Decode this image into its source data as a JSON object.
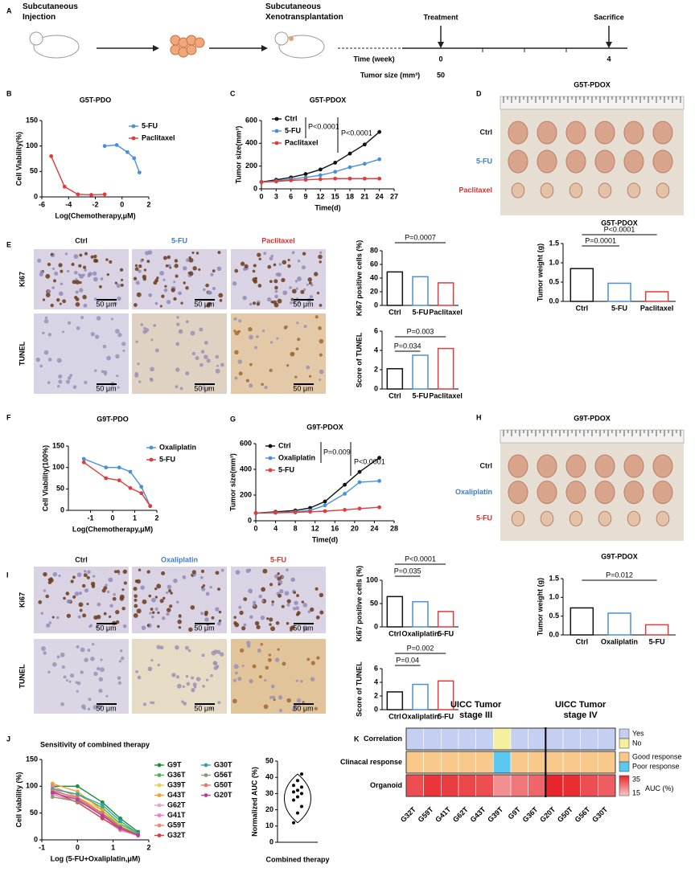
{
  "panel_labels": [
    "A",
    "B",
    "C",
    "D",
    "E",
    "F",
    "G",
    "H",
    "I",
    "J",
    "K"
  ],
  "schematic": {
    "steps": [
      "Subcutaneous Injection",
      "Subcutaneous Xenotransplantation"
    ],
    "events": [
      "Treatment",
      "Sacrifice"
    ],
    "time_label": "Time (week)",
    "time_values": [
      0,
      4
    ],
    "size_label": "Tumor size (mm³)",
    "size_value": 50
  },
  "photo_panels": [
    {
      "title": "G5T-PDOX",
      "rows": [
        {
          "label": "Ctrl",
          "color": "#111111"
        },
        {
          "label": "5-FU",
          "color": "#3d7cc9"
        },
        {
          "label": "Paclitaxel",
          "color": "#d83030"
        }
      ]
    },
    {
      "title": "G9T-PDOX",
      "rows": [
        {
          "label": "Ctrl",
          "color": "#111111"
        },
        {
          "label": "Oxaliplatin",
          "color": "#3d7cc9"
        },
        {
          "label": "5-FU",
          "color": "#d83030"
        }
      ]
    }
  ],
  "micrograph_panels": [
    {
      "columns": [
        {
          "label": "Ctrl",
          "color": "#111111"
        },
        {
          "label": "5-FU",
          "color": "#3d7cc9"
        },
        {
          "label": "Paclitaxel",
          "color": "#d83030"
        }
      ],
      "rows": [
        "Ki67",
        "TUNEL"
      ],
      "scale_bar": "50 μm"
    },
    {
      "columns": [
        {
          "label": "Ctrl",
          "color": "#111111"
        },
        {
          "label": "Oxaliplatin",
          "color": "#3d7cc9"
        },
        {
          "label": "5-FU",
          "color": "#d83030"
        }
      ],
      "rows": [
        "Ki67",
        "TUNEL"
      ],
      "scale_bar": "50 μm"
    }
  ],
  "chart_data": [
    {
      "type": "line",
      "title": "G5T-PDO",
      "x_label": "Log(Chemotherapy,μM)",
      "y_label": "Cell Viability(%)",
      "xlim": [
        -6,
        2
      ],
      "xticks": [
        -6,
        -4,
        -2,
        0,
        2
      ],
      "ylim": [
        0,
        150
      ],
      "yticks": [
        0,
        50,
        100,
        150
      ],
      "series": [
        {
          "name": "5-FU",
          "color": "#4a90d9",
          "x": [
            -1.3,
            -0.4,
            0.4,
            0.9,
            1.3
          ],
          "values": [
            100,
            102,
            88,
            76,
            48
          ]
        },
        {
          "name": "Paclitaxel",
          "color": "#e03c3c",
          "x": [
            -5.3,
            -4.3,
            -3.3,
            -2.3,
            -1.3
          ],
          "values": [
            80,
            20,
            5,
            4,
            5
          ]
        }
      ]
    },
    {
      "type": "line",
      "title": "G5T-PDOX",
      "x_label": "Time(d)",
      "y_label": "Tumor size(mm³)",
      "xlim": [
        0,
        27
      ],
      "xticks": [
        0,
        3,
        6,
        9,
        12,
        15,
        18,
        21,
        24,
        27
      ],
      "ylim": [
        0,
        600
      ],
      "yticks": [
        0,
        200,
        400,
        600
      ],
      "x": [
        0,
        3,
        6,
        9,
        12,
        15,
        18,
        21,
        24
      ],
      "series": [
        {
          "name": "Ctrl",
          "color": "#111111",
          "values": [
            60,
            80,
            100,
            130,
            170,
            230,
            310,
            390,
            500
          ]
        },
        {
          "name": "5-FU",
          "color": "#4a90d9",
          "values": [
            60,
            70,
            85,
            100,
            120,
            150,
            190,
            220,
            260
          ]
        },
        {
          "name": "Paclitaxel",
          "color": "#e03c3c",
          "values": [
            60,
            65,
            75,
            80,
            85,
            90,
            90,
            90,
            90
          ]
        }
      ],
      "annotations": [
        "P<0.0001",
        "P<0.0001"
      ]
    },
    {
      "type": "bar",
      "title": "G5T-PDOX",
      "y_label": "Tumor weight (g)",
      "ylim": [
        0,
        1.5
      ],
      "yticks": [
        {
          "value": 0,
          "label": "0.0"
        },
        0.5,
        {
          "value": 1,
          "label": "1.0"
        },
        1.5
      ],
      "categories": [
        "Ctrl",
        "5-FU",
        "Paclitaxel"
      ],
      "values": [
        0.85,
        0.47,
        0.25
      ],
      "colors": [
        "#111111",
        "#4a90d9",
        "#e03c3c"
      ],
      "annotations": [
        "P=0.0001",
        "P<0.0001"
      ]
    },
    {
      "type": "bar",
      "y_label": "Ki67 positive cells (%)",
      "ylim": [
        0,
        80
      ],
      "yticks": [
        0,
        20,
        40,
        60,
        80
      ],
      "categories": [
        "Ctrl",
        "5-FU",
        "Paclitaxel"
      ],
      "values": [
        49,
        42,
        33
      ],
      "colors": [
        "#111111",
        "#4a90d9",
        "#e03c3c"
      ],
      "annotations": [
        "P=0.0007"
      ]
    },
    {
      "type": "bar",
      "y_label": "Score of TUNEL",
      "ylim": [
        0,
        6
      ],
      "yticks": [
        0,
        2,
        4,
        6
      ],
      "categories": [
        "Ctrl",
        "5-FU",
        "Paclitaxel"
      ],
      "values": [
        2.1,
        3.5,
        4.2
      ],
      "colors": [
        "#111111",
        "#4a90d9",
        "#e03c3c"
      ],
      "annotations": [
        "P=0.034",
        "P=0.003"
      ]
    },
    {
      "type": "line",
      "title": "G9T-PDO",
      "x_label": "Log(Chemotherapy,μM)",
      "y_label": "Cell Viability(100%)",
      "xlim": [
        -2,
        2
      ],
      "xticks": [
        -1,
        0,
        1,
        2
      ],
      "ylim": [
        0,
        150
      ],
      "yticks": [
        0,
        50,
        100,
        150
      ],
      "series": [
        {
          "name": "Oxaliplatin",
          "color": "#4a90d9",
          "x": [
            -1.3,
            -0.3,
            0.3,
            0.8,
            1.3,
            1.7
          ],
          "values": [
            120,
            100,
            100,
            90,
            55,
            10
          ]
        },
        {
          "name": "5-FU",
          "color": "#e03c3c",
          "x": [
            -1.3,
            -0.3,
            0.3,
            0.8,
            1.3,
            1.7
          ],
          "values": [
            112,
            75,
            70,
            52,
            40,
            10
          ]
        }
      ]
    },
    {
      "type": "line",
      "title": "G9T-PDOX",
      "x_label": "Time(d)",
      "y_label": "Tumor size(mm³)",
      "xlim": [
        0,
        28
      ],
      "xticks": [
        0,
        4,
        8,
        12,
        16,
        20,
        24,
        28
      ],
      "ylim": [
        0,
        600
      ],
      "yticks": [
        0,
        200,
        400,
        600
      ],
      "x": [
        0,
        4,
        8,
        11,
        14,
        18,
        21,
        25
      ],
      "series": [
        {
          "name": "Ctrl",
          "color": "#111111",
          "values": [
            60,
            70,
            80,
            100,
            150,
            280,
            380,
            490
          ]
        },
        {
          "name": "Oxaliplatin",
          "color": "#4a90d9",
          "values": [
            60,
            65,
            70,
            80,
            120,
            210,
            300,
            310
          ]
        },
        {
          "name": "5-FU",
          "color": "#e03c3c",
          "values": [
            60,
            62,
            65,
            70,
            75,
            85,
            95,
            105
          ]
        }
      ],
      "annotations": [
        "P=0.009",
        "P<0.0001"
      ]
    },
    {
      "type": "bar",
      "title": "G9T-PDOX",
      "y_label": "Tumor weight (g)",
      "ylim": [
        0,
        1.5
      ],
      "yticks": [
        {
          "value": 0,
          "label": "0.0"
        },
        0.5,
        {
          "value": 1,
          "label": "1.0"
        },
        1.5
      ],
      "categories": [
        "Ctrl",
        "Oxaliplatin",
        "5-FU"
      ],
      "values": [
        0.72,
        0.58,
        0.27
      ],
      "colors": [
        "#111111",
        "#4a90d9",
        "#e03c3c"
      ],
      "annotations": [
        "P=0.012"
      ]
    },
    {
      "type": "bar",
      "y_label": "Ki67 positive cells (%)",
      "ylim": [
        0,
        100
      ],
      "yticks": [
        0,
        50,
        100
      ],
      "categories": [
        "Ctrl",
        "Oxaliplatin",
        "5-FU"
      ],
      "values": [
        65,
        54,
        33
      ],
      "colors": [
        "#111111",
        "#4a90d9",
        "#e03c3c"
      ],
      "annotations": [
        "P=0.035",
        "P<0.0001"
      ]
    },
    {
      "type": "bar",
      "y_label": "Score of TUNEL",
      "ylim": [
        0,
        6
      ],
      "yticks": [
        0,
        2,
        4,
        6
      ],
      "categories": [
        "Ctrl",
        "Oxaliplatin",
        "5-FU"
      ],
      "values": [
        2.6,
        3.7,
        4.2
      ],
      "colors": [
        "#111111",
        "#4a90d9",
        "#e03c3c"
      ],
      "annotations": [
        "P=0.04",
        "P=0.002"
      ]
    },
    {
      "type": "line",
      "title": "Sensitivity of combined therapy",
      "x_label": "Log (5-FU+Oxaliplatin,μM)",
      "y_label": "Cell viability (%)",
      "xlim": [
        -1,
        2
      ],
      "xticks": [
        -1,
        0,
        1,
        2
      ],
      "ylim": [
        0,
        150
      ],
      "yticks": [
        0,
        50,
        100,
        150
      ],
      "x": [
        -0.7,
        0,
        0.7,
        1.2,
        1.7
      ],
      "series": [
        {
          "name": "G9T",
          "color": "#1a8f3a",
          "values": [
            100,
            100,
            70,
            40,
            15
          ]
        },
        {
          "name": "G36T",
          "color": "#44b556",
          "values": [
            95,
            85,
            60,
            30,
            12
          ]
        },
        {
          "name": "G39T",
          "color": "#e5d04a",
          "values": [
            90,
            80,
            55,
            28,
            10
          ]
        },
        {
          "name": "G43T",
          "color": "#f0a030",
          "values": [
            105,
            90,
            55,
            25,
            10
          ]
        },
        {
          "name": "G62T",
          "color": "#e8a4c8",
          "values": [
            95,
            75,
            45,
            20,
            8
          ]
        },
        {
          "name": "G41T",
          "color": "#f07ad0",
          "values": [
            85,
            70,
            40,
            18,
            8
          ]
        },
        {
          "name": "G59T",
          "color": "#ef8a6a",
          "values": [
            100,
            80,
            50,
            22,
            9
          ]
        },
        {
          "name": "G32T",
          "color": "#e03e3e",
          "values": [
            90,
            70,
            40,
            20,
            8
          ]
        },
        {
          "name": "G30T",
          "color": "#3aa0b0",
          "values": [
            95,
            85,
            65,
            35,
            12
          ]
        },
        {
          "name": "G56T",
          "color": "#8a9a6a",
          "values": [
            80,
            72,
            50,
            25,
            10
          ]
        },
        {
          "name": "G50T",
          "color": "#e87070",
          "values": [
            92,
            78,
            48,
            20,
            8
          ]
        },
        {
          "name": "G20T",
          "color": "#b040a0",
          "values": [
            88,
            75,
            45,
            22,
            9
          ]
        }
      ]
    },
    {
      "type": "violin",
      "y_label": "Normalized AUC (%)",
      "category": "Combined therapy",
      "ylim": [
        0,
        50
      ],
      "yticks": [
        0,
        10,
        20,
        30,
        40,
        50
      ],
      "values": [
        12,
        18,
        22,
        26,
        28,
        30,
        31,
        32,
        34,
        35,
        38,
        42
      ]
    },
    {
      "type": "heatmap",
      "groups": [
        {
          "label": "UICC Tumor stage III",
          "span": 8
        },
        {
          "label": "UICC Tumor stage IV",
          "span": 4
        }
      ],
      "columns": [
        "G32T",
        "G59T",
        "G41T",
        "G62T",
        "G43T",
        "G39T",
        "G9T",
        "G36T",
        "G20T",
        "G50T",
        "G56T",
        "G30T"
      ],
      "rows": [
        {
          "name": "Correlation",
          "values": [
            "Yes",
            "Yes",
            "Yes",
            "Yes",
            "Yes",
            "No",
            "Yes",
            "Yes",
            "Yes",
            "Yes",
            "Yes",
            "Yes"
          ]
        },
        {
          "name": "Clinacal response",
          "values": [
            "Good response",
            "Good response",
            "Good response",
            "Good response",
            "Good response",
            "Poor response",
            "Good response",
            "Good response",
            "Good response",
            "Good response",
            "Good response",
            "Good response"
          ]
        },
        {
          "name": "Organoid",
          "values": [
            30,
            33,
            32,
            31,
            30,
            22,
            25,
            27,
            35,
            34,
            30,
            28
          ]
        }
      ],
      "legend": [
        {
          "label": "Yes",
          "color": "#c5cff2"
        },
        {
          "label": "No",
          "color": "#f4f0a0"
        },
        {
          "label": "Good response",
          "color": "#f9c98c"
        },
        {
          "label": "Poor response",
          "color": "#5bc8ef"
        }
      ],
      "colorbar": {
        "label": "AUC (%)",
        "ticks": [
          35,
          15
        ],
        "colors": [
          "#e8252a",
          "#f8c8c8"
        ]
      }
    }
  ]
}
